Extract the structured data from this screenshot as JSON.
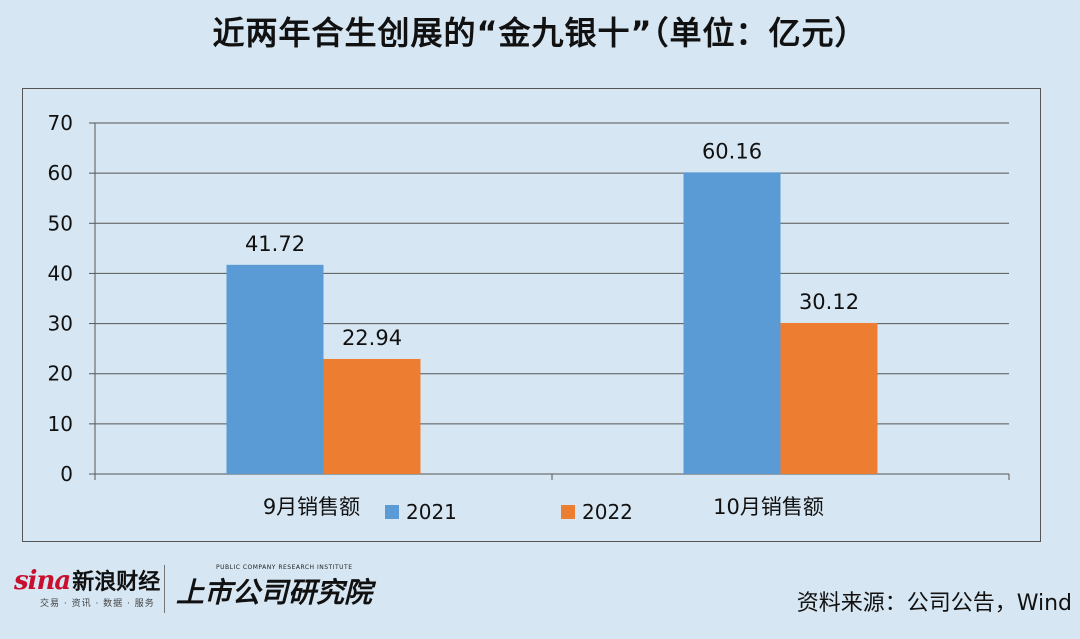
{
  "title": "近两年合生创展的“金九银十”（单位：亿元）",
  "source_text": "资料来源：公司公告，Wind",
  "logos": {
    "sina_word": "sina",
    "sina_cn": "新浪财经",
    "sina_sub": "交易 · 资讯 · 数据 · 服务",
    "inst_en": "PUBLIC COMPANY RESEARCH INSTITUTE",
    "inst_cn": "上市公司研究院"
  },
  "chart_data": {
    "type": "bar",
    "categories": [
      "9月销售额",
      "10月销售额"
    ],
    "series": [
      {
        "name": "2021",
        "values": [
          41.72,
          60.16
        ],
        "color": "#5b9bd5"
      },
      {
        "name": "2022",
        "values": [
          22.94,
          30.12
        ],
        "color": "#ed7d31"
      }
    ],
    "ylim": [
      0,
      70
    ],
    "yticks": [
      0,
      10,
      20,
      30,
      40,
      50,
      60,
      70
    ],
    "data_labels": [
      [
        "41.72",
        "60.16"
      ],
      [
        "22.94",
        "30.12"
      ]
    ],
    "grid": true,
    "legend": "bottom-center"
  }
}
